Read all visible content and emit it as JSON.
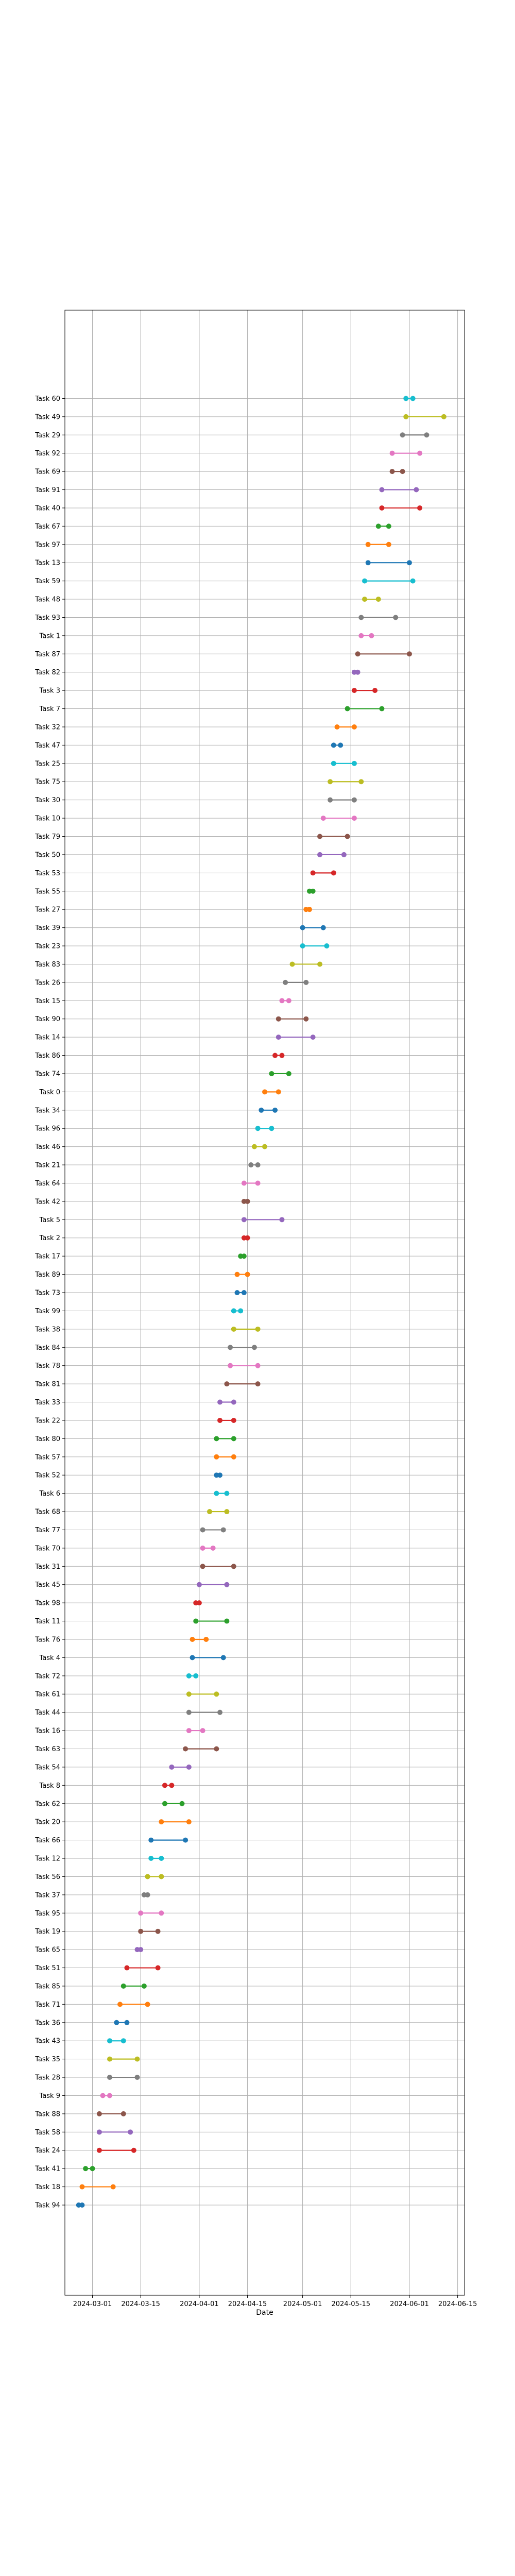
{
  "chart_data": {
    "type": "dumbbell",
    "xlabel": "Date",
    "grid": true,
    "xlim": [
      "2024-02-22",
      "2024-06-17"
    ],
    "x_ticks": [
      "2024-03-01",
      "2024-03-15",
      "2024-04-01",
      "2024-04-15",
      "2024-05-01",
      "2024-05-15",
      "2024-06-01",
      "2024-06-15"
    ],
    "palette": [
      "#1f77b4",
      "#ff7f0e",
      "#2ca02c",
      "#d62728",
      "#9467bd",
      "#8c564b",
      "#e377c2",
      "#7f7f7f",
      "#bcbd22",
      "#17becf"
    ],
    "tasks": [
      {
        "name": "Task 94",
        "start": "2024-02-26",
        "end": "2024-02-27"
      },
      {
        "name": "Task 18",
        "start": "2024-02-27",
        "end": "2024-03-07"
      },
      {
        "name": "Task 41",
        "start": "2024-02-28",
        "end": "2024-03-01"
      },
      {
        "name": "Task 24",
        "start": "2024-03-03",
        "end": "2024-03-13"
      },
      {
        "name": "Task 58",
        "start": "2024-03-03",
        "end": "2024-03-12"
      },
      {
        "name": "Task 88",
        "start": "2024-03-03",
        "end": "2024-03-10"
      },
      {
        "name": "Task 9",
        "start": "2024-03-04",
        "end": "2024-03-06"
      },
      {
        "name": "Task 28",
        "start": "2024-03-06",
        "end": "2024-03-14"
      },
      {
        "name": "Task 35",
        "start": "2024-03-06",
        "end": "2024-03-14"
      },
      {
        "name": "Task 43",
        "start": "2024-03-06",
        "end": "2024-03-10"
      },
      {
        "name": "Task 36",
        "start": "2024-03-08",
        "end": "2024-03-11"
      },
      {
        "name": "Task 71",
        "start": "2024-03-09",
        "end": "2024-03-17"
      },
      {
        "name": "Task 85",
        "start": "2024-03-10",
        "end": "2024-03-16"
      },
      {
        "name": "Task 51",
        "start": "2024-03-11",
        "end": "2024-03-20"
      },
      {
        "name": "Task 65",
        "start": "2024-03-14",
        "end": "2024-03-15"
      },
      {
        "name": "Task 19",
        "start": "2024-03-15",
        "end": "2024-03-20"
      },
      {
        "name": "Task 95",
        "start": "2024-03-15",
        "end": "2024-03-21"
      },
      {
        "name": "Task 37",
        "start": "2024-03-16",
        "end": "2024-03-17"
      },
      {
        "name": "Task 56",
        "start": "2024-03-17",
        "end": "2024-03-21"
      },
      {
        "name": "Task 12",
        "start": "2024-03-18",
        "end": "2024-03-21"
      },
      {
        "name": "Task 66",
        "start": "2024-03-18",
        "end": "2024-03-28"
      },
      {
        "name": "Task 20",
        "start": "2024-03-21",
        "end": "2024-03-29"
      },
      {
        "name": "Task 62",
        "start": "2024-03-22",
        "end": "2024-03-27"
      },
      {
        "name": "Task 8",
        "start": "2024-03-22",
        "end": "2024-03-24"
      },
      {
        "name": "Task 54",
        "start": "2024-03-24",
        "end": "2024-03-29"
      },
      {
        "name": "Task 63",
        "start": "2024-03-28",
        "end": "2024-04-06"
      },
      {
        "name": "Task 16",
        "start": "2024-03-29",
        "end": "2024-04-02"
      },
      {
        "name": "Task 44",
        "start": "2024-03-29",
        "end": "2024-04-07"
      },
      {
        "name": "Task 61",
        "start": "2024-03-29",
        "end": "2024-04-06"
      },
      {
        "name": "Task 72",
        "start": "2024-03-29",
        "end": "2024-03-31"
      },
      {
        "name": "Task 4",
        "start": "2024-03-30",
        "end": "2024-04-08"
      },
      {
        "name": "Task 76",
        "start": "2024-03-30",
        "end": "2024-04-03"
      },
      {
        "name": "Task 11",
        "start": "2024-03-31",
        "end": "2024-04-09"
      },
      {
        "name": "Task 98",
        "start": "2024-03-31",
        "end": "2024-04-01"
      },
      {
        "name": "Task 45",
        "start": "2024-04-01",
        "end": "2024-04-09"
      },
      {
        "name": "Task 31",
        "start": "2024-04-02",
        "end": "2024-04-11"
      },
      {
        "name": "Task 70",
        "start": "2024-04-02",
        "end": "2024-04-05"
      },
      {
        "name": "Task 77",
        "start": "2024-04-02",
        "end": "2024-04-08"
      },
      {
        "name": "Task 68",
        "start": "2024-04-04",
        "end": "2024-04-09"
      },
      {
        "name": "Task 6",
        "start": "2024-04-06",
        "end": "2024-04-09"
      },
      {
        "name": "Task 52",
        "start": "2024-04-06",
        "end": "2024-04-07"
      },
      {
        "name": "Task 57",
        "start": "2024-04-06",
        "end": "2024-04-11"
      },
      {
        "name": "Task 80",
        "start": "2024-04-06",
        "end": "2024-04-11"
      },
      {
        "name": "Task 22",
        "start": "2024-04-07",
        "end": "2024-04-11"
      },
      {
        "name": "Task 33",
        "start": "2024-04-07",
        "end": "2024-04-11"
      },
      {
        "name": "Task 81",
        "start": "2024-04-09",
        "end": "2024-04-18"
      },
      {
        "name": "Task 78",
        "start": "2024-04-10",
        "end": "2024-04-18"
      },
      {
        "name": "Task 84",
        "start": "2024-04-10",
        "end": "2024-04-17"
      },
      {
        "name": "Task 38",
        "start": "2024-04-11",
        "end": "2024-04-18"
      },
      {
        "name": "Task 99",
        "start": "2024-04-11",
        "end": "2024-04-13"
      },
      {
        "name": "Task 73",
        "start": "2024-04-12",
        "end": "2024-04-14"
      },
      {
        "name": "Task 89",
        "start": "2024-04-12",
        "end": "2024-04-15"
      },
      {
        "name": "Task 17",
        "start": "2024-04-13",
        "end": "2024-04-14"
      },
      {
        "name": "Task 2",
        "start": "2024-04-14",
        "end": "2024-04-15"
      },
      {
        "name": "Task 5",
        "start": "2024-04-14",
        "end": "2024-04-25"
      },
      {
        "name": "Task 42",
        "start": "2024-04-14",
        "end": "2024-04-15"
      },
      {
        "name": "Task 64",
        "start": "2024-04-14",
        "end": "2024-04-18"
      },
      {
        "name": "Task 21",
        "start": "2024-04-16",
        "end": "2024-04-18"
      },
      {
        "name": "Task 46",
        "start": "2024-04-17",
        "end": "2024-04-20"
      },
      {
        "name": "Task 96",
        "start": "2024-04-18",
        "end": "2024-04-22"
      },
      {
        "name": "Task 34",
        "start": "2024-04-19",
        "end": "2024-04-23"
      },
      {
        "name": "Task 0",
        "start": "2024-04-20",
        "end": "2024-04-24"
      },
      {
        "name": "Task 74",
        "start": "2024-04-22",
        "end": "2024-04-27"
      },
      {
        "name": "Task 86",
        "start": "2024-04-23",
        "end": "2024-04-25"
      },
      {
        "name": "Task 14",
        "start": "2024-04-24",
        "end": "2024-05-04"
      },
      {
        "name": "Task 90",
        "start": "2024-04-24",
        "end": "2024-05-02"
      },
      {
        "name": "Task 15",
        "start": "2024-04-25",
        "end": "2024-04-27"
      },
      {
        "name": "Task 26",
        "start": "2024-04-26",
        "end": "2024-05-02"
      },
      {
        "name": "Task 83",
        "start": "2024-04-28",
        "end": "2024-05-06"
      },
      {
        "name": "Task 23",
        "start": "2024-05-01",
        "end": "2024-05-08"
      },
      {
        "name": "Task 39",
        "start": "2024-05-01",
        "end": "2024-05-07"
      },
      {
        "name": "Task 27",
        "start": "2024-05-02",
        "end": "2024-05-03"
      },
      {
        "name": "Task 55",
        "start": "2024-05-03",
        "end": "2024-05-04"
      },
      {
        "name": "Task 53",
        "start": "2024-05-04",
        "end": "2024-05-10"
      },
      {
        "name": "Task 50",
        "start": "2024-05-06",
        "end": "2024-05-13"
      },
      {
        "name": "Task 79",
        "start": "2024-05-06",
        "end": "2024-05-14"
      },
      {
        "name": "Task 10",
        "start": "2024-05-07",
        "end": "2024-05-16"
      },
      {
        "name": "Task 30",
        "start": "2024-05-09",
        "end": "2024-05-16"
      },
      {
        "name": "Task 75",
        "start": "2024-05-09",
        "end": "2024-05-18"
      },
      {
        "name": "Task 25",
        "start": "2024-05-10",
        "end": "2024-05-16"
      },
      {
        "name": "Task 47",
        "start": "2024-05-10",
        "end": "2024-05-12"
      },
      {
        "name": "Task 32",
        "start": "2024-05-11",
        "end": "2024-05-16"
      },
      {
        "name": "Task 7",
        "start": "2024-05-14",
        "end": "2024-05-24"
      },
      {
        "name": "Task 3",
        "start": "2024-05-16",
        "end": "2024-05-22"
      },
      {
        "name": "Task 82",
        "start": "2024-05-16",
        "end": "2024-05-17"
      },
      {
        "name": "Task 87",
        "start": "2024-05-17",
        "end": "2024-06-01"
      },
      {
        "name": "Task 1",
        "start": "2024-05-18",
        "end": "2024-05-21"
      },
      {
        "name": "Task 93",
        "start": "2024-05-18",
        "end": "2024-05-28"
      },
      {
        "name": "Task 48",
        "start": "2024-05-19",
        "end": "2024-05-23"
      },
      {
        "name": "Task 59",
        "start": "2024-05-19",
        "end": "2024-06-02"
      },
      {
        "name": "Task 13",
        "start": "2024-05-20",
        "end": "2024-06-01"
      },
      {
        "name": "Task 97",
        "start": "2024-05-20",
        "end": "2024-05-26"
      },
      {
        "name": "Task 67",
        "start": "2024-05-23",
        "end": "2024-05-26"
      },
      {
        "name": "Task 40",
        "start": "2024-05-24",
        "end": "2024-06-04"
      },
      {
        "name": "Task 91",
        "start": "2024-05-24",
        "end": "2024-06-03"
      },
      {
        "name": "Task 69",
        "start": "2024-05-27",
        "end": "2024-05-30"
      },
      {
        "name": "Task 92",
        "start": "2024-05-27",
        "end": "2024-06-04"
      },
      {
        "name": "Task 29",
        "start": "2024-05-30",
        "end": "2024-06-06"
      },
      {
        "name": "Task 49",
        "start": "2024-05-31",
        "end": "2024-06-11"
      },
      {
        "name": "Task 60",
        "start": "2024-05-31",
        "end": "2024-06-02"
      }
    ]
  }
}
